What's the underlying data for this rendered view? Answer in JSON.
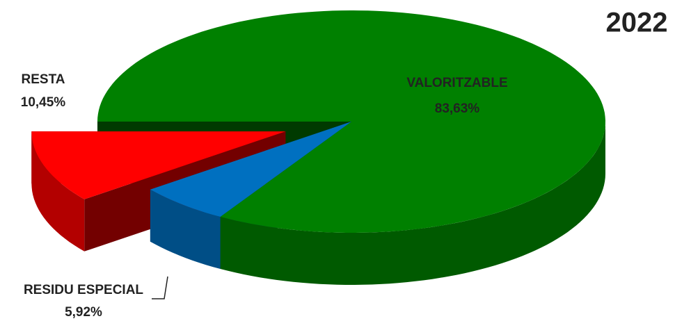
{
  "chart_data": {
    "type": "pie",
    "title": "2022",
    "categories": [
      "VALORITZABLE",
      "RESIDU ESPECIAL",
      "RESTA"
    ],
    "values": [
      83.63,
      5.92,
      10.45
    ],
    "value_labels": [
      "83,63%",
      "5,92%",
      "10,45%"
    ],
    "colors": [
      "#008000",
      "#0070c0",
      "#ff0000"
    ],
    "exploded": [
      false,
      false,
      true
    ]
  }
}
